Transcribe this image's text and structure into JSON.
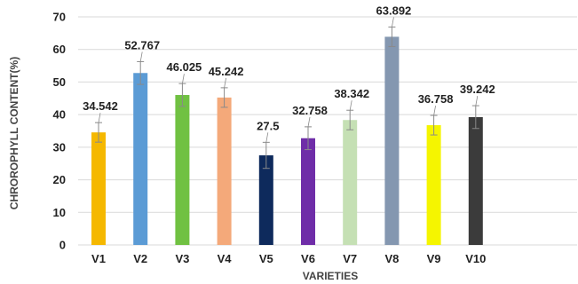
{
  "chart_data": {
    "type": "bar",
    "title": "",
    "xlabel": "VARIETIES",
    "ylabel": "CHROROPHYLL CONTENT(%)",
    "ylim": [
      0,
      70
    ],
    "yticks": [
      0,
      10,
      20,
      30,
      40,
      50,
      60,
      70
    ],
    "grid": true,
    "legend": "none",
    "categories": [
      "V1",
      "V2",
      "V3",
      "V4",
      "V5",
      "V6",
      "V7",
      "V8",
      "V9",
      "V10"
    ],
    "values": [
      34.542,
      52.767,
      46.025,
      45.242,
      27.5,
      32.758,
      38.342,
      63.892,
      36.758,
      39.242
    ],
    "data_labels": [
      "34.542",
      "52.767",
      "46.025",
      "45.242",
      "27.5",
      "32.758",
      "38.342",
      "63.892",
      "36.758",
      "39.242"
    ],
    "errors": [
      3.0,
      3.5,
      3.5,
      3.0,
      4.0,
      3.5,
      3.0,
      3.0,
      3.0,
      3.5
    ],
    "colors": [
      "#f5b800",
      "#5b9bd5",
      "#70c142",
      "#f4a97a",
      "#0e2a5c",
      "#6f2da8",
      "#c5e0b4",
      "#8497b0",
      "#f5f500",
      "#3b3b3b"
    ]
  }
}
